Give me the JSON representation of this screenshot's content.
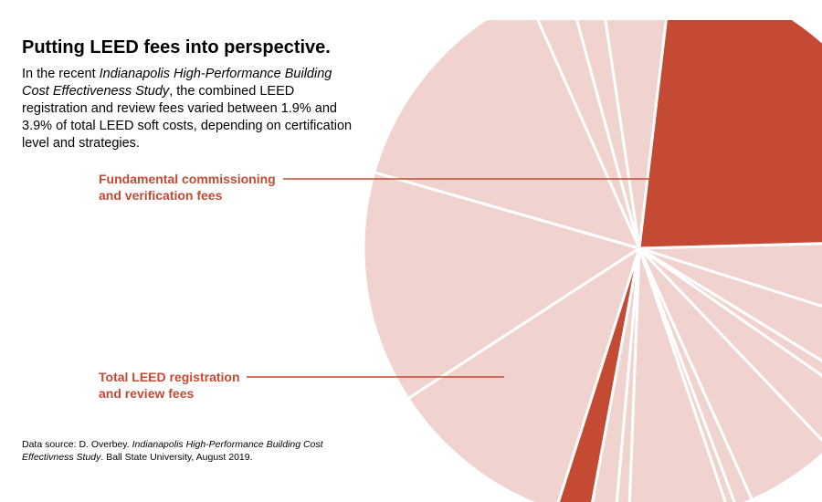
{
  "header": {
    "title": "Putting LEED fees into perspective.",
    "intro": {
      "pre": "In the recent ",
      "study_italic": "Indianapolis High-Performance Building Cost Effectiveness Study",
      "post": ", the combined LEED registration and review fees varied between 1.9% and 3.9% of total LEED soft costs, depending on certification level and strategies."
    }
  },
  "callouts": {
    "commissioning": {
      "line1": "Fundamental commissioning",
      "line2": "and verification fees"
    },
    "leed_fees": {
      "line1": "Total LEED registration",
      "line2": "and review fees"
    }
  },
  "source": {
    "pre": "Data source: D. Overbey. ",
    "study_italic": "Indianapolis High-Performance Building Cost Effectivness Study",
    "post": ". Ball State University, August 2019."
  },
  "colors": {
    "highlight": "#c44a34",
    "slice": "#f0d3cf",
    "divider": "#ffffff",
    "callout_text": "#c44a34"
  },
  "chart_data": {
    "type": "pie",
    "start_angle_deg": -1.5,
    "slices": [
      {
        "key": "s01",
        "value": 5.3,
        "highlight": false
      },
      {
        "key": "s02",
        "value": 3.9,
        "highlight": false
      },
      {
        "key": "s03",
        "value": 0.9,
        "highlight": false
      },
      {
        "key": "s04",
        "value": 3.2,
        "highlight": false
      },
      {
        "key": "s05",
        "value": 5.4,
        "highlight": false
      },
      {
        "key": "s06",
        "value": 1.0,
        "highlight": false
      },
      {
        "key": "s07",
        "value": 0.5,
        "highlight": false
      },
      {
        "key": "s08",
        "value": 5.8,
        "highlight": false
      },
      {
        "key": "s09",
        "value": 0.8,
        "highlight": false
      },
      {
        "key": "s10",
        "value": 1.5,
        "highlight": false
      },
      {
        "key": "s11",
        "value": 2.0,
        "highlight": true
      },
      {
        "key": "s12",
        "value": 10.9,
        "highlight": false
      },
      {
        "key": "s13",
        "value": 13.6,
        "highlight": false
      },
      {
        "key": "s14",
        "value": 13.9,
        "highlight": false
      },
      {
        "key": "s15",
        "value": 2.4,
        "highlight": false
      },
      {
        "key": "s16",
        "value": 1.9,
        "highlight": false
      },
      {
        "key": "s17",
        "value": 4.2,
        "highlight": false
      },
      {
        "key": "s18",
        "value": 22.7,
        "highlight": true
      }
    ]
  }
}
